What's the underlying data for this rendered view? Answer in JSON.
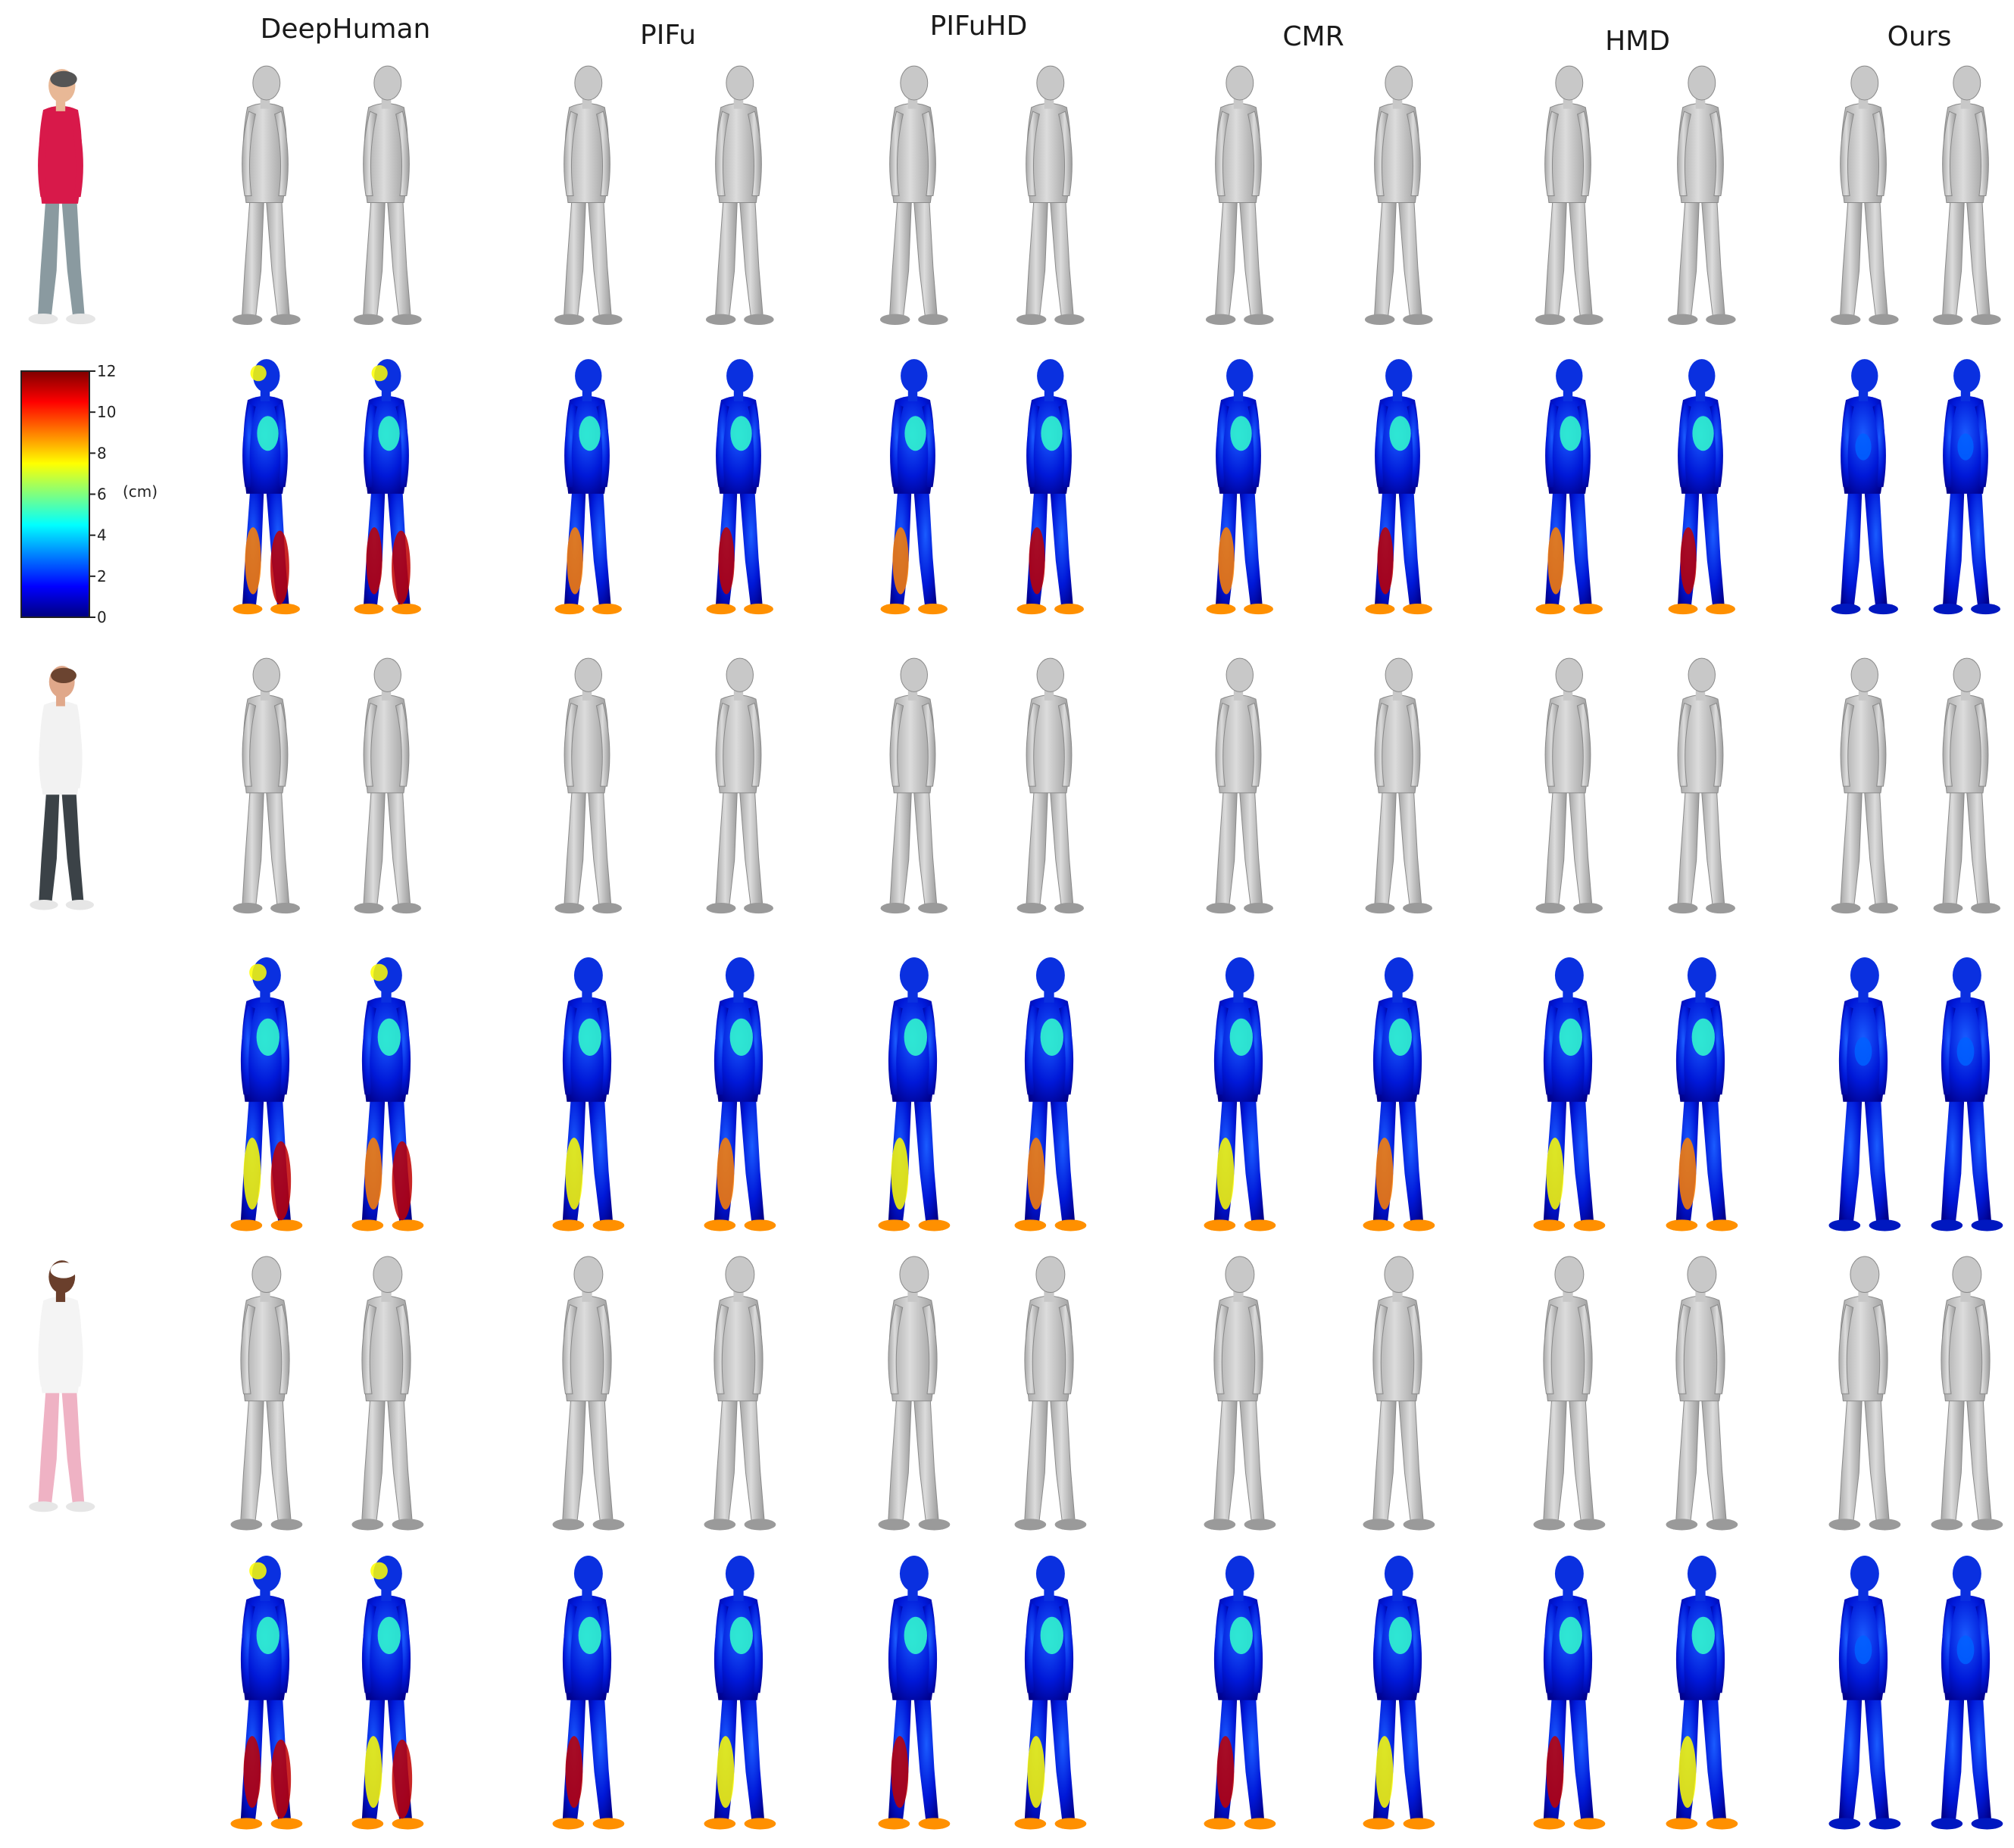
{
  "methods": [
    "DeepHuman",
    "PIFu",
    "PIFuHD",
    "CMR",
    "HMD",
    "Ours"
  ],
  "colorbar": {
    "ticks": [
      "0",
      "2",
      "4",
      "6",
      "8",
      "10",
      "12"
    ],
    "unit": "(cm)",
    "colors": [
      "#00007f",
      "#0000ff",
      "#007fff",
      "#00ffff",
      "#7fff7f",
      "#ffff00",
      "#ff7f00",
      "#ff0000",
      "#7f0000"
    ]
  },
  "subjects": [
    {
      "shirt": "#d8194a",
      "pants": "#8a9aa0",
      "skin": "#e8b896",
      "hair": "#555555"
    },
    {
      "shirt": "#f2f2f2",
      "pants": "#3b4247",
      "skin": "#e0a88a",
      "hair": "#6b4430"
    },
    {
      "shirt": "#f4f4f4",
      "pants": "#efb2c4",
      "skin": "#6a3f2c",
      "hair": "#ffffff"
    }
  ],
  "mesh_colors": {
    "gray": "#c8c8c8",
    "gray_dark": "#9a9a9a"
  }
}
